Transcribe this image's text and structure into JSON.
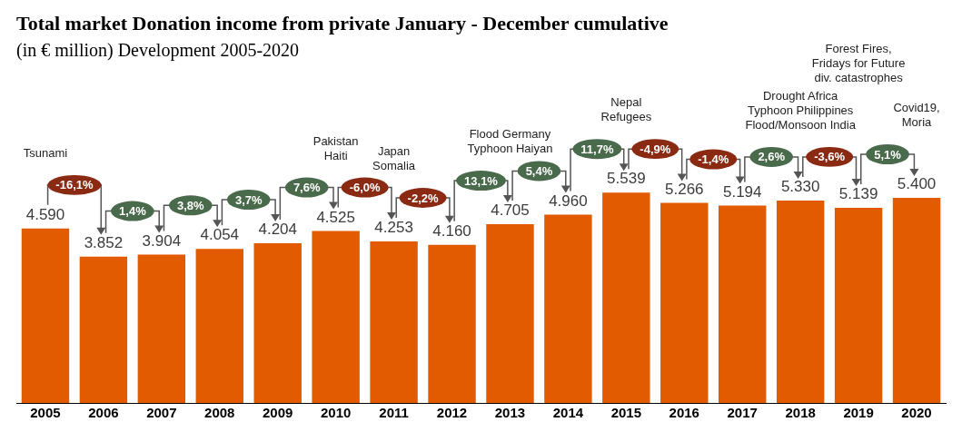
{
  "chart_data": {
    "type": "bar",
    "title": "Total market Donation income from private January - December cumulative",
    "subtitle": "(in € million) Development 2005-2020",
    "categories": [
      "2005",
      "2006",
      "2007",
      "2008",
      "2009",
      "2010",
      "2011",
      "2012",
      "2013",
      "2014",
      "2015",
      "2016",
      "2017",
      "2018",
      "2019",
      "2020"
    ],
    "values": [
      4590,
      3852,
      3904,
      4054,
      4204,
      4525,
      4253,
      4160,
      4705,
      4960,
      5539,
      5266,
      5194,
      5330,
      5139,
      5400
    ],
    "value_labels": [
      "4.590",
      "3.852",
      "3.904",
      "4.054",
      "4.204",
      "4.525",
      "4.253",
      "4.160",
      "4.705",
      "4.960",
      "5.539",
      "5.266",
      "5.194",
      "5.330",
      "5.139",
      "5.400"
    ],
    "color": "#e35b00",
    "grid": false,
    "legend": false,
    "annotations": [
      "-16,1%",
      "1,4%",
      "3,8%",
      "3,7%",
      "7,6%",
      "-6,0%",
      "-2,2%",
      "13,1%",
      "5,4%",
      "11,7%",
      "-4,9%",
      "-1,4%",
      "2,6%",
      "-3,6%",
      "5,1%",
      "Tsunami",
      "Pakistan\nHaiti",
      "Japan\nSomalia",
      "Flood Germany\nTyphoon Haiyan",
      "Nepal\nRefugees",
      "Drought Africa\nTyphoon Philippines\nFlood/Monsoon India",
      "Forest Fires,\nFridays for Future\ndiv. catastrophes",
      "Covid19,\nMoria"
    ]
  }
}
